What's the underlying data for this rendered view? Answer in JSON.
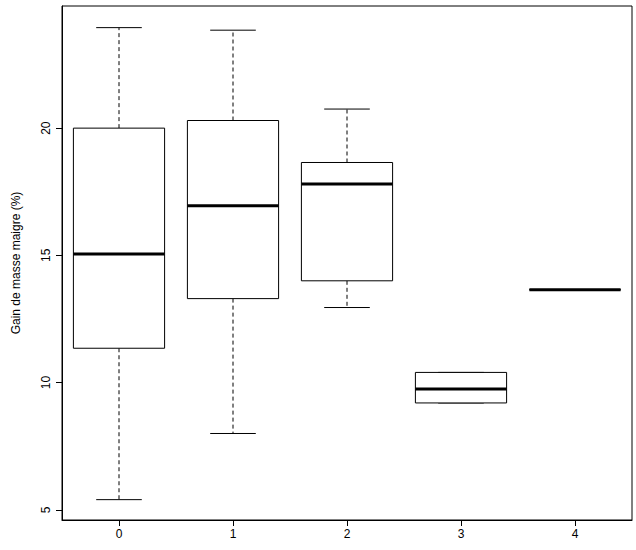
{
  "chart_data": {
    "type": "boxplot",
    "y_label": "Gain de masse maigre (%)",
    "categories": [
      "0",
      "1",
      "2",
      "3",
      "4"
    ],
    "values": [
      [
        5.4,
        11.35,
        15.05,
        20.0,
        23.95
      ],
      [
        8.0,
        13.3,
        16.95,
        20.3,
        23.85
      ],
      [
        12.95,
        14.0,
        17.8,
        18.65,
        20.75
      ],
      [
        9.2,
        9.2,
        9.75,
        10.4,
        10.4
      ],
      [
        13.65,
        13.65,
        13.65,
        13.65,
        13.65
      ]
    ],
    "color": "#000000",
    "ylim": [
      4.6,
      24.8
    ],
    "yticks": [
      5,
      10,
      15,
      20
    ],
    "grid": false
  }
}
